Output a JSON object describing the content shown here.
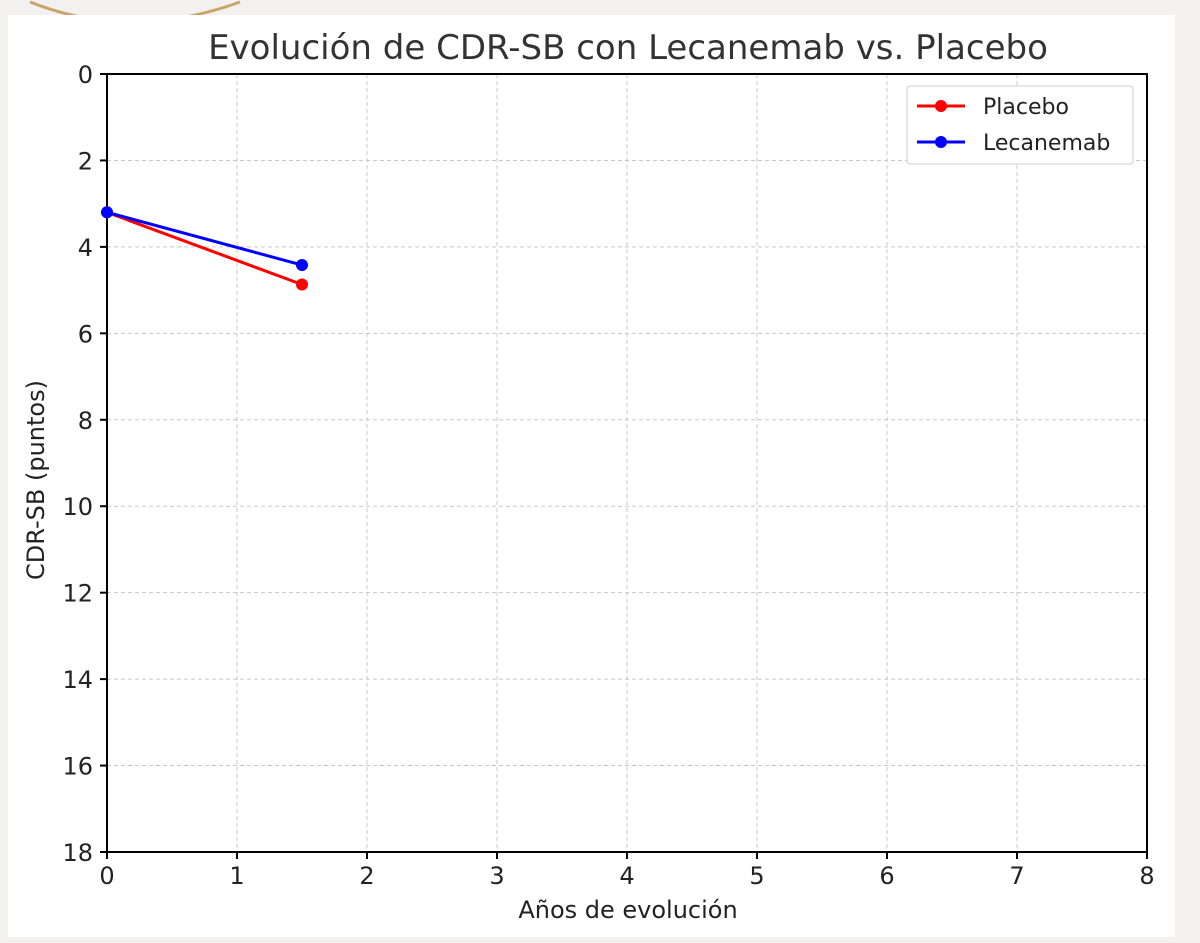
{
  "colors": {
    "background": "#f2f1ef",
    "card": "#ffffff",
    "decor_arc": "#c9a46a",
    "grid": "#c8c8c8",
    "axis": "#000000"
  },
  "chart_data": {
    "type": "line",
    "title": "Evolución de CDR-SB con Lecanemab vs. Placebo",
    "xlabel": "Años de evolución",
    "ylabel": "CDR-SB (puntos)",
    "xlim": [
      0,
      8
    ],
    "ylim": [
      0,
      18
    ],
    "y_inverted": true,
    "x_ticks": [
      0,
      1,
      2,
      3,
      4,
      5,
      6,
      7,
      8
    ],
    "y_ticks": [
      0,
      2,
      4,
      6,
      8,
      10,
      12,
      14,
      16,
      18
    ],
    "grid": true,
    "legend_position": "top-right",
    "series": [
      {
        "name": "Placebo",
        "color": "#ff0000",
        "marker": "circle",
        "x": [
          0,
          1.5
        ],
        "y": [
          3.2,
          4.87
        ]
      },
      {
        "name": "Lecanemab",
        "color": "#0000ff",
        "marker": "circle",
        "x": [
          0,
          1.5
        ],
        "y": [
          3.2,
          4.42
        ]
      }
    ]
  }
}
